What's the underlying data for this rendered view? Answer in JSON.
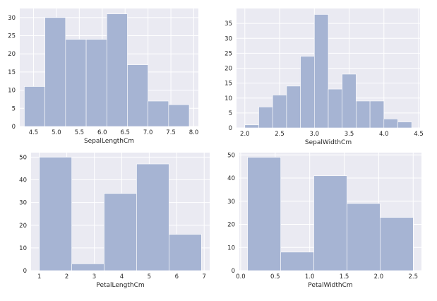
{
  "chart_data": [
    {
      "type": "bar",
      "xlabel": "SepalLengthCm",
      "ylabel": "",
      "xlim": [
        4.2,
        8.1
      ],
      "ylim": [
        0,
        32.5
      ],
      "bin_edges": [
        4.3,
        4.75,
        5.2,
        5.65,
        6.1,
        6.55,
        7.0,
        7.45,
        7.9
      ],
      "values": [
        11,
        30,
        24,
        24,
        31,
        17,
        7,
        6
      ],
      "xticks": [
        4.5,
        5.0,
        5.5,
        6.0,
        6.5,
        7.0,
        7.5,
        8.0
      ],
      "xtick_labels": [
        "4.5",
        "5.0",
        "5.5",
        "6.0",
        "6.5",
        "7.0",
        "7.5",
        "8.0"
      ],
      "yticks": [
        0,
        5,
        10,
        15,
        20,
        25,
        30
      ],
      "ytick_labels": [
        "0",
        "5",
        "10",
        "15",
        "20",
        "25",
        "30"
      ],
      "grid": true,
      "color": "#a6b4d3"
    },
    {
      "type": "bar",
      "xlabel": "SepalWidthCm",
      "ylabel": "",
      "xlim": [
        1.88,
        4.52
      ],
      "ylim": [
        0,
        40
      ],
      "bin_edges": [
        2.0,
        2.2,
        2.4,
        2.6,
        2.8,
        3.0,
        3.2,
        3.4,
        3.6,
        3.8,
        4.0,
        4.2,
        4.4
      ],
      "values": [
        1,
        7,
        11,
        14,
        24,
        38,
        13,
        18,
        9,
        9,
        3,
        2,
        1
      ],
      "xticks": [
        2.0,
        2.5,
        3.0,
        3.5,
        4.0,
        4.5
      ],
      "xtick_labels": [
        "2.0",
        "2.5",
        "3.0",
        "3.5",
        "4.0",
        "4.5"
      ],
      "yticks": [
        0,
        5,
        10,
        15,
        20,
        25,
        30,
        35
      ],
      "ytick_labels": [
        "0",
        "5",
        "10",
        "15",
        "20",
        "25",
        "30",
        "35"
      ],
      "grid": true,
      "color": "#a6b4d3"
    },
    {
      "type": "bar",
      "xlabel": "PetalLengthCm",
      "ylabel": "",
      "xlim": [
        0.7,
        7.2
      ],
      "ylim": [
        0,
        52
      ],
      "bin_edges": [
        1.0,
        2.18,
        3.36,
        4.54,
        5.72,
        6.9
      ],
      "values": [
        50,
        3,
        34,
        47,
        16
      ],
      "xticks": [
        1,
        2,
        3,
        4,
        5,
        6,
        7
      ],
      "xtick_labels": [
        "1",
        "2",
        "3",
        "4",
        "5",
        "6",
        "7"
      ],
      "yticks": [
        0,
        10,
        20,
        30,
        40,
        50
      ],
      "ytick_labels": [
        "0",
        "10",
        "20",
        "30",
        "40",
        "50"
      ],
      "grid": true,
      "color": "#a6b4d3"
    },
    {
      "type": "bar",
      "xlabel": "PetalWidthCm",
      "ylabel": "",
      "xlim": [
        -0.02,
        2.62
      ],
      "ylim": [
        0,
        51
      ],
      "bin_edges": [
        0.1,
        0.58,
        1.06,
        1.54,
        2.02,
        2.5
      ],
      "values": [
        49,
        8,
        41,
        29,
        23
      ],
      "xticks": [
        0.0,
        0.5,
        1.0,
        1.5,
        2.0,
        2.5
      ],
      "xtick_labels": [
        "0.0",
        "0.5",
        "1.0",
        "1.5",
        "2.0",
        "2.5"
      ],
      "yticks": [
        0,
        10,
        20,
        30,
        40,
        50
      ],
      "ytick_labels": [
        "0",
        "10",
        "20",
        "30",
        "40",
        "50"
      ],
      "grid": true,
      "color": "#a6b4d3"
    }
  ]
}
